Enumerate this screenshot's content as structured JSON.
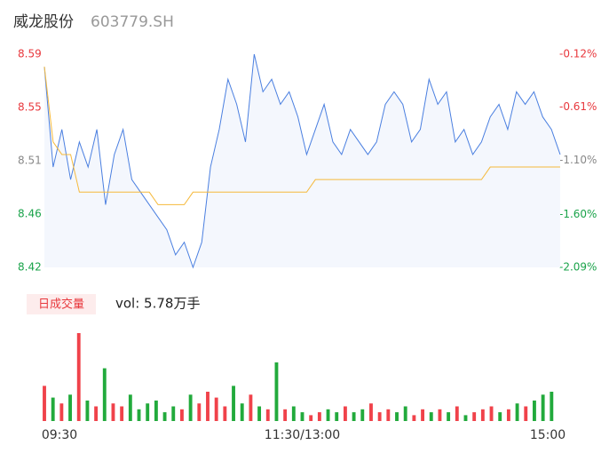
{
  "chart_data": {
    "type": "line",
    "title": "威龙股份",
    "subtitle": "603779.SH",
    "ylim": [
      8.42,
      8.59
    ],
    "yticks": [
      8.59,
      {
        "value": 8.5475,
        "label": "8.55"
      },
      {
        "value": 8.505,
        "label": "8.51"
      },
      {
        "value": 8.4625,
        "label": "8.46"
      },
      8.42
    ],
    "ytick_colors": [
      "#e8383d",
      "#e8383d",
      "#888888",
      "#1aa34a",
      "#1aa34a"
    ],
    "y2lim": [
      -2.09,
      -0.12
    ],
    "y2ticks": [
      {
        "value": -0.12,
        "label": "-0.12%"
      },
      {
        "value": -0.61,
        "label": "-0.61%"
      },
      {
        "value": -1.1,
        "label": "-1.10%"
      },
      {
        "value": -1.6,
        "label": "-1.60%"
      },
      {
        "value": -2.09,
        "label": "-2.09%"
      }
    ],
    "xticks": [
      {
        "value": 0,
        "label": "09:30"
      },
      {
        "value": 29.5,
        "label": "11:30/13:00"
      },
      {
        "value": 59,
        "label": "15:00"
      }
    ],
    "series": [
      {
        "color": "#4a7fe0",
        "values": [
          8.58,
          8.5,
          8.53,
          8.49,
          8.52,
          8.5,
          8.53,
          8.47,
          8.51,
          8.53,
          8.49,
          8.48,
          8.47,
          8.46,
          8.45,
          8.43,
          8.44,
          8.42,
          8.44,
          8.5,
          8.53,
          8.57,
          8.55,
          8.52,
          8.59,
          8.56,
          8.57,
          8.55,
          8.56,
          8.54,
          8.51,
          8.53,
          8.55,
          8.52,
          8.51,
          8.53,
          8.52,
          8.51,
          8.52,
          8.55,
          8.56,
          8.55,
          8.52,
          8.53,
          8.57,
          8.55,
          8.56,
          8.52,
          8.53,
          8.51,
          8.52,
          8.54,
          8.55,
          8.53,
          8.56,
          8.55,
          8.56,
          8.54,
          8.53,
          8.51
        ]
      },
      {
        "color": "#f5b93b",
        "values": [
          8.58,
          8.52,
          8.51,
          8.51,
          8.48,
          8.48,
          8.48,
          8.48,
          8.48,
          8.48,
          8.48,
          8.48,
          8.48,
          8.47,
          8.47,
          8.47,
          8.47,
          8.48,
          8.48,
          8.48,
          8.48,
          8.48,
          8.48,
          8.48,
          8.48,
          8.48,
          8.48,
          8.48,
          8.48,
          8.48,
          8.48,
          8.49,
          8.49,
          8.49,
          8.49,
          8.49,
          8.49,
          8.49,
          8.49,
          8.49,
          8.49,
          8.49,
          8.49,
          8.49,
          8.49,
          8.49,
          8.49,
          8.49,
          8.49,
          8.49,
          8.49,
          8.5,
          8.5,
          8.5,
          8.5,
          8.5,
          8.5,
          8.5,
          8.5,
          8.5
        ]
      }
    ],
    "volume": {
      "title": "日成交量",
      "summary": "vol: 5.78万手",
      "up_color": "#f0424a",
      "down_color": "#22aa3c",
      "values": [
        1200,
        800,
        600,
        900,
        3000,
        700,
        500,
        1800,
        600,
        500,
        900,
        400,
        600,
        700,
        300,
        500,
        400,
        900,
        600,
        1000,
        800,
        500,
        1200,
        600,
        900,
        500,
        400,
        2000,
        400,
        500,
        300,
        200,
        300,
        400,
        300,
        500,
        300,
        400,
        600,
        300,
        400,
        300,
        500,
        200,
        400,
        300,
        400,
        300,
        500,
        200,
        300,
        400,
        500,
        300,
        400,
        600,
        500,
        700,
        900,
        1000
      ]
    }
  }
}
